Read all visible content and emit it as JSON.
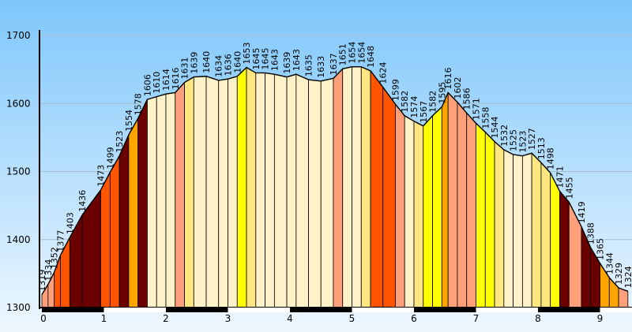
{
  "chart_data": {
    "type": "area",
    "title": "",
    "xlabel": "",
    "ylabel": "",
    "xlim": [
      0,
      9.45
    ],
    "ylim": [
      1300,
      1700
    ],
    "grid": true,
    "yticks": [
      1300,
      1400,
      1500,
      1600,
      1700
    ],
    "xticks": [
      0,
      1,
      2,
      3,
      4,
      5,
      6,
      7,
      8,
      9
    ],
    "colors": {
      "background_top": "#7ec7fb",
      "background_bottom": "#eef7ff",
      "gridline": "#a9bccf",
      "outline": "#000000",
      "palette": {
        "darkred": "#6b0000",
        "orangered": "#ff5500",
        "salmon": "#ffa07a",
        "cream": "#fff2c8",
        "khaki": "#ffe680",
        "yellow": "#ffff00",
        "orange": "#ffa500"
      }
    },
    "points": [
      {
        "x": 0.0,
        "y": 1319,
        "color": "salmon"
      },
      {
        "x": 0.1,
        "y": 1334,
        "color": "salmon"
      },
      {
        "x": 0.2,
        "y": 1352,
        "color": "orangered"
      },
      {
        "x": 0.3,
        "y": 1377,
        "color": "orangered"
      },
      {
        "x": 0.45,
        "y": 1403,
        "color": "darkred"
      },
      {
        "x": 0.65,
        "y": 1436,
        "color": "darkred"
      },
      {
        "x": 0.95,
        "y": 1473,
        "color": "orangered"
      },
      {
        "x": 1.1,
        "y": 1499,
        "color": "orangered"
      },
      {
        "x": 1.25,
        "y": 1523,
        "color": "darkred"
      },
      {
        "x": 1.4,
        "y": 1554,
        "color": "orange"
      },
      {
        "x": 1.55,
        "y": 1578,
        "color": "darkred"
      },
      {
        "x": 1.7,
        "y": 1606,
        "color": "cream"
      },
      {
        "x": 1.85,
        "y": 1610,
        "color": "cream"
      },
      {
        "x": 2.0,
        "y": 1614,
        "color": "cream"
      },
      {
        "x": 2.15,
        "y": 1616,
        "color": "salmon"
      },
      {
        "x": 2.3,
        "y": 1631,
        "color": "khaki"
      },
      {
        "x": 2.45,
        "y": 1639,
        "color": "cream"
      },
      {
        "x": 2.65,
        "y": 1640,
        "color": "cream"
      },
      {
        "x": 2.85,
        "y": 1634,
        "color": "cream"
      },
      {
        "x": 3.0,
        "y": 1636,
        "color": "cream"
      },
      {
        "x": 3.15,
        "y": 1640,
        "color": "yellow"
      },
      {
        "x": 3.3,
        "y": 1653,
        "color": "khaki"
      },
      {
        "x": 3.45,
        "y": 1645,
        "color": "cream"
      },
      {
        "x": 3.6,
        "y": 1645,
        "color": "cream"
      },
      {
        "x": 3.75,
        "y": 1643,
        "color": "cream"
      },
      {
        "x": 3.95,
        "y": 1639,
        "color": "cream"
      },
      {
        "x": 4.1,
        "y": 1643,
        "color": "cream"
      },
      {
        "x": 4.3,
        "y": 1635,
        "color": "cream"
      },
      {
        "x": 4.5,
        "y": 1633,
        "color": "cream"
      },
      {
        "x": 4.7,
        "y": 1637,
        "color": "salmon"
      },
      {
        "x": 4.85,
        "y": 1651,
        "color": "cream"
      },
      {
        "x": 5.0,
        "y": 1654,
        "color": "cream"
      },
      {
        "x": 5.15,
        "y": 1654,
        "color": "khaki"
      },
      {
        "x": 5.3,
        "y": 1648,
        "color": "orangered"
      },
      {
        "x": 5.5,
        "y": 1624,
        "color": "orangered"
      },
      {
        "x": 5.7,
        "y": 1599,
        "color": "salmon"
      },
      {
        "x": 5.85,
        "y": 1582,
        "color": "cream"
      },
      {
        "x": 6.0,
        "y": 1574,
        "color": "khaki"
      },
      {
        "x": 6.15,
        "y": 1567,
        "color": "yellow"
      },
      {
        "x": 6.3,
        "y": 1582,
        "color": "yellow"
      },
      {
        "x": 6.45,
        "y": 1595,
        "color": "orange"
      },
      {
        "x": 6.55,
        "y": 1616,
        "color": "salmon"
      },
      {
        "x": 6.7,
        "y": 1602,
        "color": "salmon"
      },
      {
        "x": 6.85,
        "y": 1586,
        "color": "salmon"
      },
      {
        "x": 7.0,
        "y": 1571,
        "color": "yellow"
      },
      {
        "x": 7.15,
        "y": 1558,
        "color": "yellow"
      },
      {
        "x": 7.3,
        "y": 1544,
        "color": "khaki"
      },
      {
        "x": 7.45,
        "y": 1532,
        "color": "cream"
      },
      {
        "x": 7.6,
        "y": 1525,
        "color": "cream"
      },
      {
        "x": 7.75,
        "y": 1523,
        "color": "cream"
      },
      {
        "x": 7.9,
        "y": 1527,
        "color": "khaki"
      },
      {
        "x": 8.05,
        "y": 1513,
        "color": "khaki"
      },
      {
        "x": 8.2,
        "y": 1498,
        "color": "yellow"
      },
      {
        "x": 8.35,
        "y": 1471,
        "color": "darkred"
      },
      {
        "x": 8.5,
        "y": 1455,
        "color": "salmon"
      },
      {
        "x": 8.7,
        "y": 1419,
        "color": "darkred"
      },
      {
        "x": 8.85,
        "y": 1388,
        "color": "darkred"
      },
      {
        "x": 9.0,
        "y": 1365,
        "color": "orange"
      },
      {
        "x": 9.15,
        "y": 1344,
        "color": "orange"
      },
      {
        "x": 9.3,
        "y": 1329,
        "color": "salmon"
      },
      {
        "x": 9.45,
        "y": 1324,
        "color": "yellow"
      }
    ]
  }
}
